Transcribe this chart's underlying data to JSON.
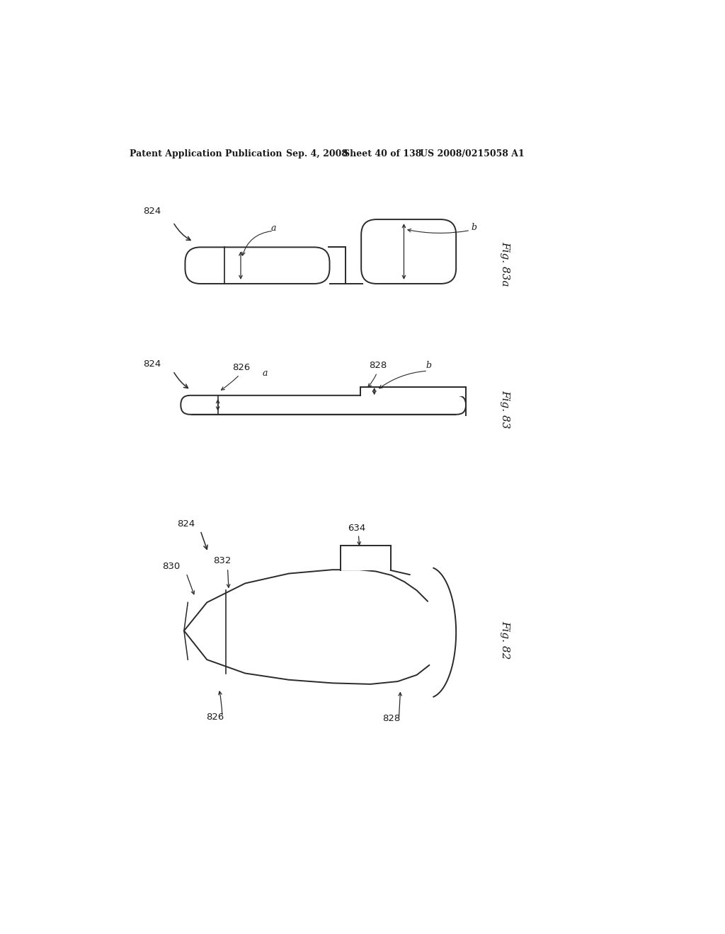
{
  "bg_color": "#ffffff",
  "header_text": "Patent Application Publication",
  "header_date": "Sep. 4, 2008",
  "header_sheet": "Sheet 40 of 138",
  "header_patent": "US 2008/0215058 A1",
  "fig82_label": "Fig. 82",
  "fig83_label": "Fig. 83",
  "fig83a_label": "Fig. 83a",
  "line_color": "#2a2a2a",
  "text_color": "#1a1a1a"
}
